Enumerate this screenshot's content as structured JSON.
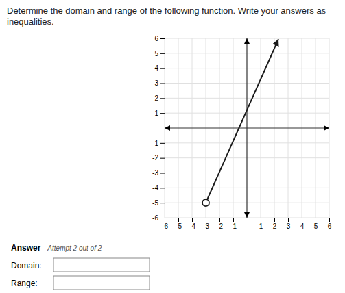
{
  "chart_data": {
    "type": "line",
    "title": "Determine the domain and range of the following function. Write your answers as inequalities.",
    "x": [
      -3,
      2.3
    ],
    "series": [
      {
        "values": [
          -5,
          5.95
        ],
        "color": "#1a1a1a",
        "marker": "open_circle"
      }
    ],
    "xlim": [
      -6,
      6
    ],
    "xticks": [
      -6,
      -5,
      -4,
      -3,
      -2,
      -1,
      1,
      2,
      3,
      4,
      5,
      6
    ],
    "ylim": [
      -6,
      6
    ],
    "yticks": [
      -6,
      -5,
      -4,
      -3,
      -2,
      -1,
      1,
      2,
      3,
      4,
      5,
      6
    ],
    "grid": true,
    "annotations": [
      "Answer",
      "Attempt 2 out of 2",
      "Domain:",
      "Range:"
    ]
  }
}
